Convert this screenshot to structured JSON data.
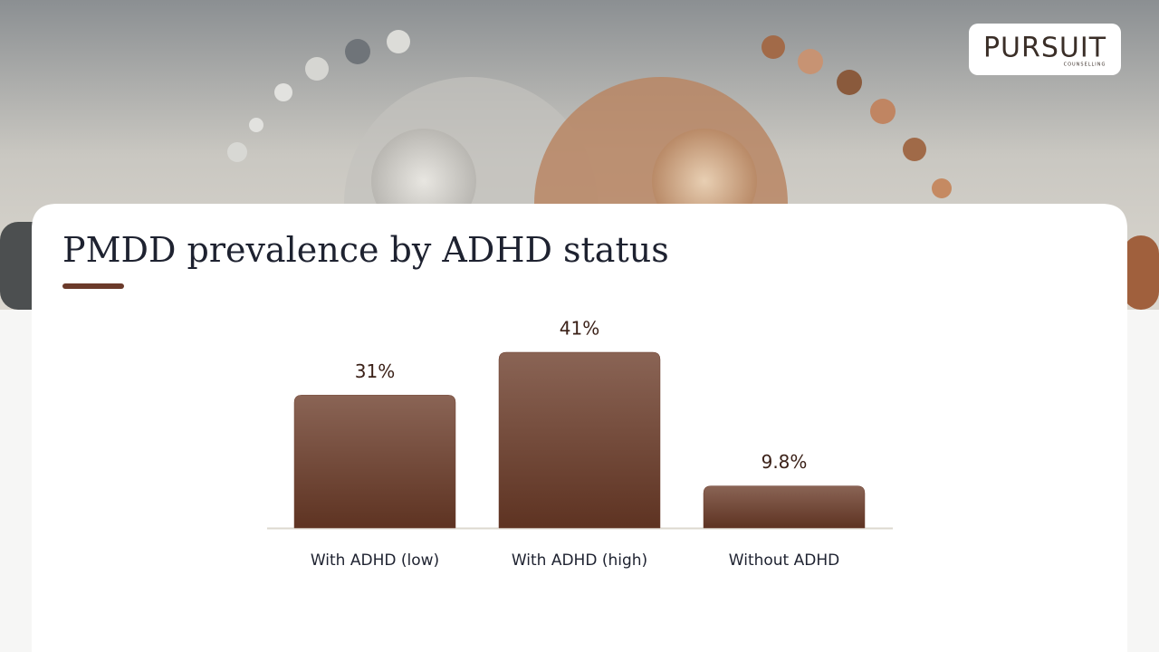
{
  "logo": {
    "name": "PURSUIT",
    "tagline": "COUNSELLING"
  },
  "chart_data": {
    "type": "bar",
    "title": "PMDD prevalence by ADHD status",
    "categories": [
      "With ADHD (low)",
      "With ADHD (high)",
      "Without ADHD"
    ],
    "values": [
      31,
      41,
      9.8
    ],
    "value_labels": [
      "31%",
      "41%",
      "9.8%"
    ],
    "color": "#6e4030"
  }
}
